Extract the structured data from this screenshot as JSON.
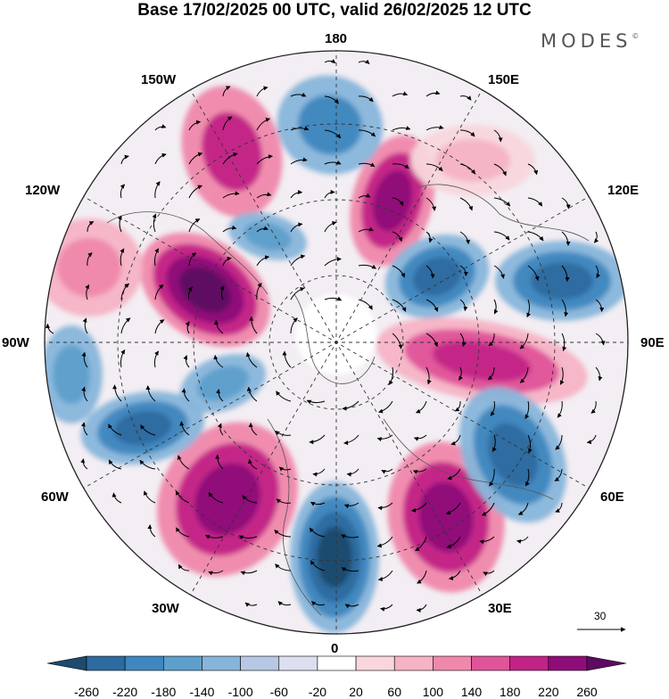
{
  "header": {
    "title": "Base 17/02/2025 00 UTC, valid 26/02/2025 12 UTC",
    "brand": "MODES",
    "brand_mark": "©"
  },
  "map": {
    "projection": "north-polar-stereographic",
    "longitude_labels": [
      {
        "id": "lon-180",
        "text": "180"
      },
      {
        "id": "lon-150w",
        "text": "150W"
      },
      {
        "id": "lon-150e",
        "text": "150E"
      },
      {
        "id": "lon-120w",
        "text": "120W"
      },
      {
        "id": "lon-120e",
        "text": "120E"
      },
      {
        "id": "lon-90w",
        "text": "90W"
      },
      {
        "id": "lon-90e",
        "text": "90E"
      },
      {
        "id": "lon-60w",
        "text": "60W"
      },
      {
        "id": "lon-60e",
        "text": "60E"
      },
      {
        "id": "lon-30w",
        "text": "30W"
      },
      {
        "id": "lon-30e",
        "text": "30E"
      },
      {
        "id": "lon-0",
        "text": "0"
      }
    ],
    "wind_reference": {
      "value": "30"
    }
  },
  "colorbar": {
    "levels": [
      "-260",
      "-220",
      "-180",
      "-140",
      "-100",
      "-60",
      "-20",
      "20",
      "60",
      "100",
      "140",
      "180",
      "220",
      "260"
    ],
    "colors": [
      "#1d4a6e",
      "#2d6a9f",
      "#3f87bf",
      "#5e9fcc",
      "#87b5da",
      "#b6c8e3",
      "#dcdff0",
      "#ffffff",
      "#f8d6dc",
      "#f5b3c5",
      "#ef88ab",
      "#e05499",
      "#c22387",
      "#8e0d78",
      "#5c0a63"
    ]
  },
  "colors": {
    "neutral": "#ffffff",
    "contour": "#222222",
    "coast": "#555555"
  }
}
